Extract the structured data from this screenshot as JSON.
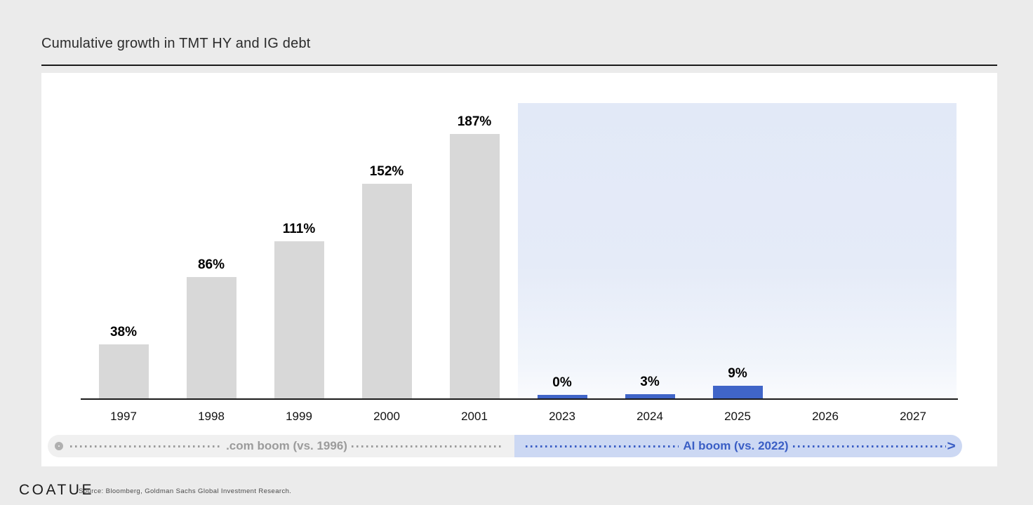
{
  "page": {
    "title": "Cumulative growth in TMT HY and IG debt",
    "footer": {
      "logo": "COATUE",
      "source": "Source: Bloomberg, Goldman Sachs Global Investment Research."
    }
  },
  "chart_data": {
    "type": "bar",
    "title": "Cumulative growth in TMT HY and IG debt",
    "xlabel": "",
    "ylabel": "",
    "ylim": [
      0,
      200
    ],
    "grid": false,
    "categories": [
      "1997",
      "1998",
      "1999",
      "2000",
      "2001",
      "2023",
      "2024",
      "2025",
      "2026",
      "2027"
    ],
    "series": [
      {
        "name": ".com boom (vs. 1996)",
        "color": "#d8d8d8",
        "values": [
          38,
          86,
          111,
          152,
          187,
          null,
          null,
          null,
          null,
          null
        ]
      },
      {
        "name": "AI boom (vs. 2022)",
        "color": "#4065c8",
        "values": [
          null,
          null,
          null,
          null,
          null,
          0,
          3,
          9,
          null,
          null
        ]
      }
    ],
    "data_labels": [
      "38%",
      "86%",
      "111%",
      "152%",
      "187%",
      "0%",
      "3%",
      "9%",
      null,
      null
    ],
    "highlight_region": {
      "from_category": "2023",
      "to_category": "2027",
      "color": "#e4eaf8"
    },
    "annotations": {
      "com_boom_label": ".com boom (vs. 1996)",
      "ai_boom_label": "AI boom (vs. 2022)",
      "ai_boom_arrow": ">",
      "com_boom_text_color": "#9b9b9b",
      "ai_boom_text_color": "#3a5ec5"
    }
  }
}
